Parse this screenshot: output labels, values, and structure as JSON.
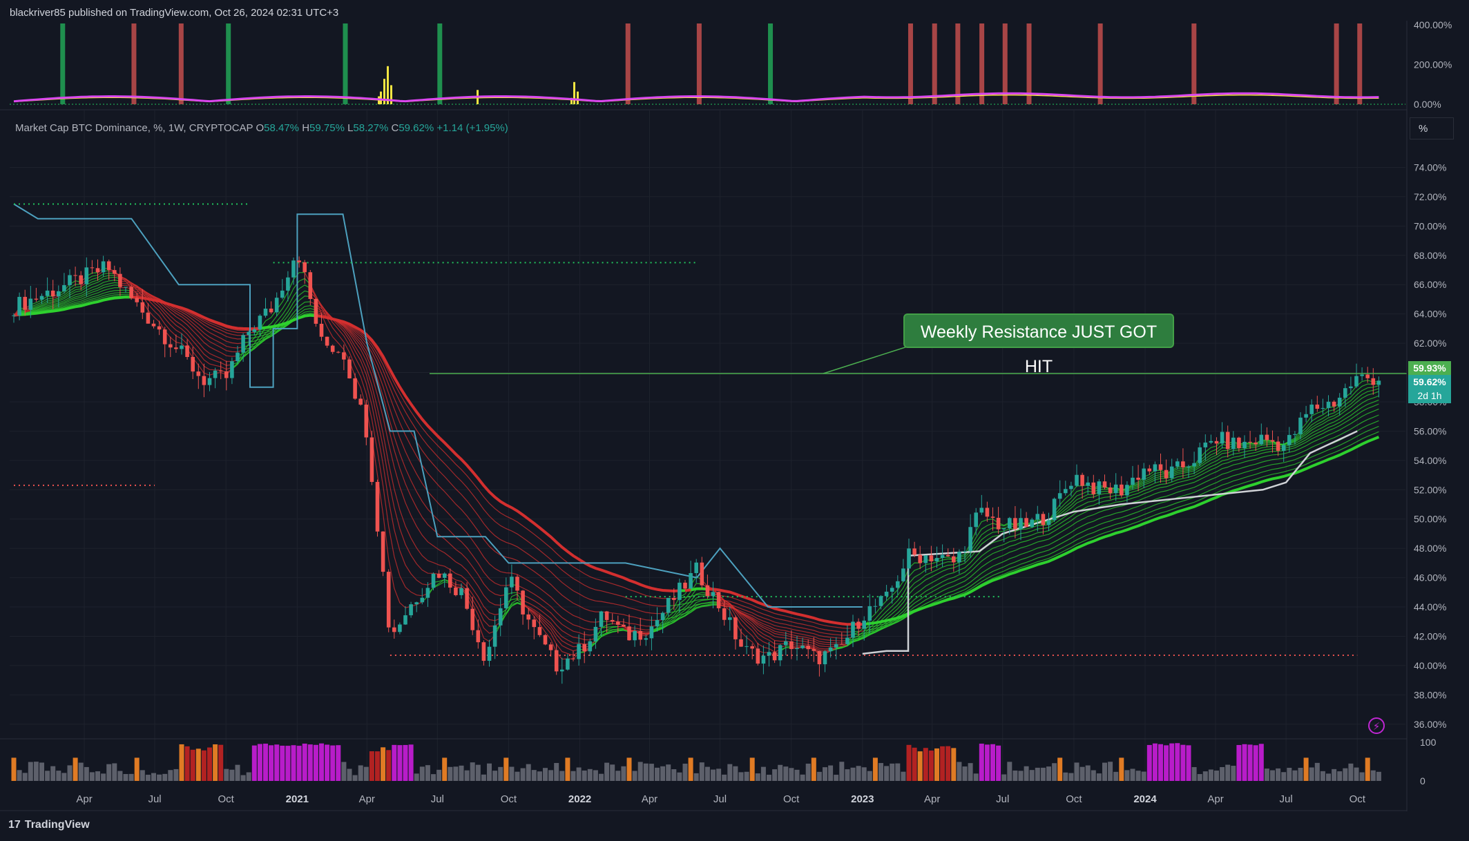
{
  "header": {
    "publisher_line": "blackriver85 published on TradingView.com, Oct 26, 2024 02:31 UTC+3"
  },
  "legend": {
    "symbol": "Market Cap BTC Dominance, %, 1W, CRYPTOCAP",
    "o_label": "O",
    "o_value": "58.47%",
    "h_label": "H",
    "h_value": "59.75%",
    "l_label": "L",
    "l_value": "58.27%",
    "c_label": "C",
    "c_value": "59.62%",
    "change": "+1.14 (+1.95%)"
  },
  "scale_button": "%",
  "annotation": {
    "text": "Weekly Resistance JUST GOT HIT"
  },
  "price_tags": {
    "resistance": "59.93%",
    "current": "59.62%",
    "countdown": "2d 1h"
  },
  "top_indicator_axis": [
    "400.00%",
    "200.00%",
    "0.00%"
  ],
  "volume_axis": [
    "100",
    "0"
  ],
  "footer": {
    "brand": "TradingView"
  },
  "colors": {
    "background": "#131722",
    "up": "#26a69a",
    "down": "#ef5350",
    "resistance": "#4caf50",
    "ribbon_bear": "#d32f2f",
    "ribbon_bull": "#2ed02e",
    "stop_line": "#4da1bf",
    "stop_line_bull": "#cfd2d6",
    "magenta": "#d946ef"
  },
  "chart_data": {
    "type": "candlestick",
    "title": "Market Cap BTC Dominance, %, 1W, CRYPTOCAP",
    "y_unit": "%",
    "ylim": [
      35,
      76
    ],
    "y_ticks": [
      "36.00%",
      "38.00%",
      "40.00%",
      "42.00%",
      "44.00%",
      "46.00%",
      "48.00%",
      "50.00%",
      "52.00%",
      "54.00%",
      "56.00%",
      "58.00%",
      "60.00%",
      "62.00%",
      "64.00%",
      "66.00%",
      "68.00%",
      "70.00%",
      "72.00%",
      "74.00%"
    ],
    "x_ticks": [
      {
        "label": "Apr",
        "date": "2020-04"
      },
      {
        "label": "Jul",
        "date": "2020-07"
      },
      {
        "label": "Oct",
        "date": "2020-10"
      },
      {
        "label": "2021",
        "date": "2021-01",
        "year": true
      },
      {
        "label": "Apr",
        "date": "2021-04"
      },
      {
        "label": "Jul",
        "date": "2021-07"
      },
      {
        "label": "Oct",
        "date": "2021-10"
      },
      {
        "label": "2022",
        "date": "2022-01",
        "year": true
      },
      {
        "label": "Apr",
        "date": "2022-04"
      },
      {
        "label": "Jul",
        "date": "2022-07"
      },
      {
        "label": "Oct",
        "date": "2022-10"
      },
      {
        "label": "2023",
        "date": "2023-01",
        "year": true
      },
      {
        "label": "Apr",
        "date": "2023-04"
      },
      {
        "label": "Jul",
        "date": "2023-07"
      },
      {
        "label": "Oct",
        "date": "2023-10"
      },
      {
        "label": "2024",
        "date": "2024-01",
        "year": true
      },
      {
        "label": "Apr",
        "date": "2024-04"
      },
      {
        "label": "Jul",
        "date": "2024-07"
      },
      {
        "label": "Oct",
        "date": "2024-10"
      }
    ],
    "price_path": [
      {
        "date": "2020-01",
        "close": 64.5
      },
      {
        "date": "2020-03",
        "close": 65.8
      },
      {
        "date": "2020-05",
        "close": 67.2
      },
      {
        "date": "2020-06",
        "close": 65.0
      },
      {
        "date": "2020-08",
        "close": 61.5
      },
      {
        "date": "2020-09",
        "close": 59.5
      },
      {
        "date": "2020-10",
        "close": 59.6
      },
      {
        "date": "2020-11",
        "close": 63.0
      },
      {
        "date": "2020-12",
        "close": 64.5
      },
      {
        "date": "2021-01",
        "close": 68.5
      },
      {
        "date": "2021-02",
        "close": 62.0
      },
      {
        "date": "2021-03",
        "close": 61.5
      },
      {
        "date": "2021-04",
        "close": 56.0
      },
      {
        "date": "2021-05",
        "close": 42.0
      },
      {
        "date": "2021-06",
        "close": 44.5
      },
      {
        "date": "2021-07",
        "close": 46.5
      },
      {
        "date": "2021-08",
        "close": 45.0
      },
      {
        "date": "2021-09",
        "close": 40.5
      },
      {
        "date": "2021-10",
        "close": 46.0
      },
      {
        "date": "2021-11",
        "close": 42.5
      },
      {
        "date": "2021-12",
        "close": 40.0
      },
      {
        "date": "2022-01",
        "close": 41.0
      },
      {
        "date": "2022-02",
        "close": 43.5
      },
      {
        "date": "2022-03",
        "close": 42.0
      },
      {
        "date": "2022-04",
        "close": 42.5
      },
      {
        "date": "2022-05",
        "close": 44.5
      },
      {
        "date": "2022-06",
        "close": 46.5
      },
      {
        "date": "2022-07",
        "close": 44.0
      },
      {
        "date": "2022-08",
        "close": 41.0
      },
      {
        "date": "2022-09",
        "close": 40.5
      },
      {
        "date": "2022-10",
        "close": 41.5
      },
      {
        "date": "2022-11",
        "close": 40.5
      },
      {
        "date": "2022-12",
        "close": 41.0
      },
      {
        "date": "2023-01",
        "close": 43.5
      },
      {
        "date": "2023-02",
        "close": 44.5
      },
      {
        "date": "2023-03",
        "close": 47.5
      },
      {
        "date": "2023-04",
        "close": 47.5
      },
      {
        "date": "2023-05",
        "close": 47.0
      },
      {
        "date": "2023-06",
        "close": 50.5
      },
      {
        "date": "2023-07",
        "close": 49.5
      },
      {
        "date": "2023-08",
        "close": 49.5
      },
      {
        "date": "2023-09",
        "close": 50.5
      },
      {
        "date": "2023-10",
        "close": 53.0
      },
      {
        "date": "2023-11",
        "close": 52.0
      },
      {
        "date": "2023-12",
        "close": 52.0
      },
      {
        "date": "2024-01",
        "close": 53.5
      },
      {
        "date": "2024-02",
        "close": 53.0
      },
      {
        "date": "2024-03",
        "close": 54.0
      },
      {
        "date": "2024-04",
        "close": 55.5
      },
      {
        "date": "2024-05",
        "close": 55.0
      },
      {
        "date": "2024-06",
        "close": 55.5
      },
      {
        "date": "2024-07",
        "close": 55.0
      },
      {
        "date": "2024-08",
        "close": 57.5
      },
      {
        "date": "2024-09",
        "close": 58.0
      },
      {
        "date": "2024-10",
        "close": 59.62
      }
    ],
    "resistance_level": 59.93,
    "last_close": 59.62,
    "dotted_levels": [
      71.5,
      67.5,
      52.3,
      44.7,
      40.7
    ]
  }
}
